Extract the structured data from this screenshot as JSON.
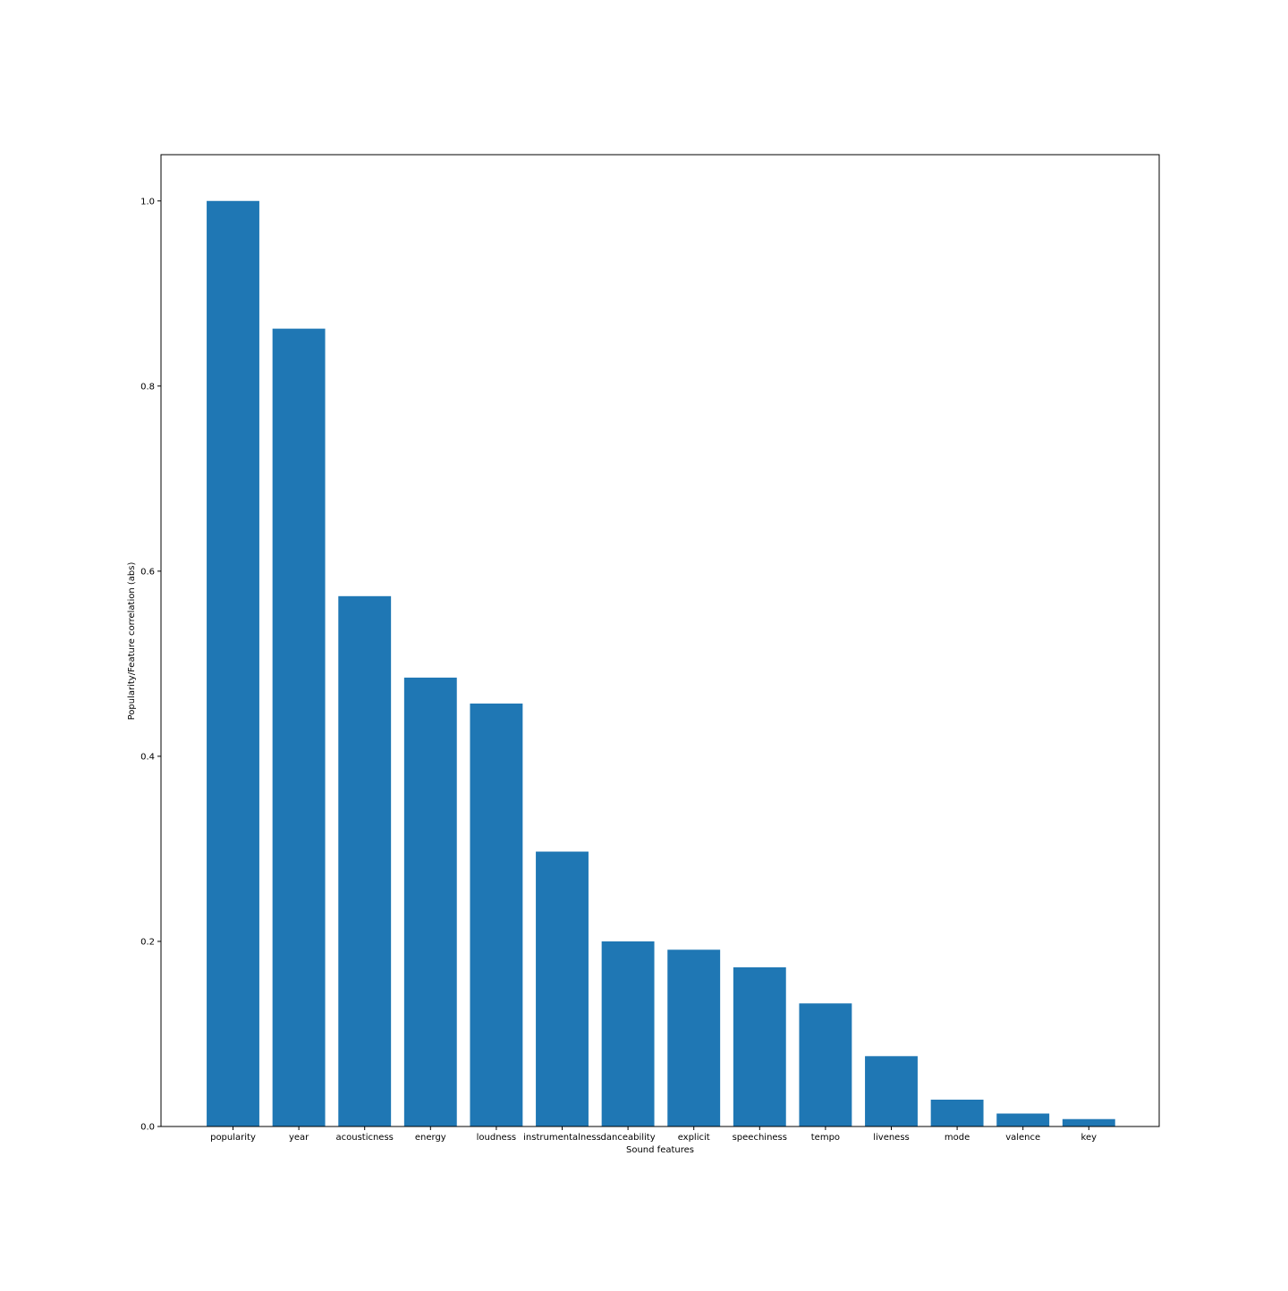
{
  "chart_data": {
    "type": "bar",
    "categories": [
      "popularity",
      "year",
      "acousticness",
      "energy",
      "loudness",
      "instrumentalness",
      "danceability",
      "explicit",
      "speechiness",
      "tempo",
      "liveness",
      "mode",
      "valence",
      "key"
    ],
    "values": [
      1.0,
      0.862,
      0.573,
      0.485,
      0.457,
      0.297,
      0.2,
      0.191,
      0.172,
      0.133,
      0.076,
      0.029,
      0.014,
      0.008
    ],
    "xlabel": "Sound features",
    "ylabel": "Popularity/Feature correlation (abs)",
    "ylim": [
      0,
      1.05
    ],
    "yticks": [
      "0.0",
      "0.2",
      "0.4",
      "0.6",
      "0.8",
      "1.0"
    ],
    "bar_color": "#1f77b4",
    "grid": false
  }
}
